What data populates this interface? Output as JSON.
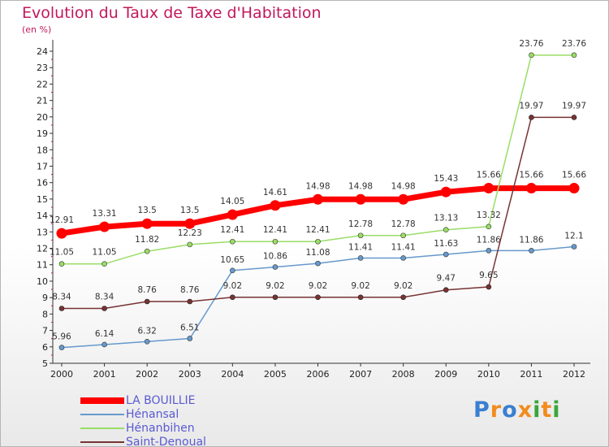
{
  "header": {
    "title": "Evolution du Taux de Taxe d'Habitation",
    "unit": "(en %)"
  },
  "brand": {
    "letters": [
      "P",
      "r",
      "o",
      "x",
      "i",
      "t",
      "i"
    ],
    "colors": [
      "#3a7fd0",
      "#f28c1e",
      "#3a7fd0",
      "#f28c1e",
      "#3aa63a",
      "#f28c1e",
      "#3aa63a"
    ]
  },
  "chart_data": {
    "type": "line",
    "x": [
      "2000",
      "2001",
      "2002",
      "2003",
      "2004",
      "2005",
      "2006",
      "2007",
      "2008",
      "2009",
      "2010",
      "2011",
      "2012"
    ],
    "ylim": [
      5,
      24
    ],
    "yticks": [
      5,
      6,
      7,
      8,
      9,
      10,
      11,
      12,
      13,
      14,
      15,
      16,
      17,
      18,
      19,
      20,
      21,
      22,
      23,
      24
    ],
    "grid": false,
    "legend_position": "bottom-left",
    "series": [
      {
        "name": "LA BOUILLIE",
        "color": "#ff0000",
        "values": [
          12.91,
          13.31,
          13.5,
          13.5,
          14.05,
          14.61,
          14.98,
          14.98,
          14.98,
          15.43,
          15.66,
          15.66,
          15.66
        ],
        "labels": [
          "12.91",
          "13.31",
          "13.5",
          "13.5",
          "14.05",
          "14.61",
          "14.98",
          "14.98",
          "14.98",
          "15.43",
          "15.66",
          "15.66",
          "15.66"
        ]
      },
      {
        "name": "Hénansal",
        "color": "#6699cc",
        "values": [
          5.96,
          6.14,
          6.32,
          6.51,
          10.65,
          10.86,
          11.08,
          11.41,
          11.41,
          11.63,
          11.86,
          11.86,
          12.1
        ],
        "labels": [
          "5.96",
          "6.14",
          "6.32",
          "6.51",
          "10.65",
          "10.86",
          "11.08",
          "11.41",
          "11.41",
          "11.63",
          "11.86",
          "11.86",
          "12.1"
        ]
      },
      {
        "name": "Hénanbihen",
        "color": "#99dd66",
        "values": [
          11.05,
          11.05,
          11.82,
          12.23,
          12.41,
          12.41,
          12.41,
          12.78,
          12.78,
          13.13,
          13.32,
          23.76,
          23.76
        ],
        "labels": [
          "11.05",
          "11.05",
          "11.82",
          "12.23",
          "12.41",
          "12.41",
          "12.41",
          "12.78",
          "12.78",
          "13.13",
          "13.32",
          "23.76",
          "23.76"
        ]
      },
      {
        "name": "Saint-Denoual",
        "color": "#773333",
        "values": [
          8.34,
          8.34,
          8.76,
          8.76,
          9.02,
          9.02,
          9.02,
          9.02,
          9.02,
          9.47,
          9.65,
          19.97,
          19.97
        ],
        "labels": [
          "8.34",
          "8.34",
          "8.76",
          "8.76",
          "9.02",
          "9.02",
          "9.02",
          "9.02",
          "9.02",
          "9.47",
          "9.65",
          "19.97",
          "19.97"
        ]
      }
    ]
  }
}
